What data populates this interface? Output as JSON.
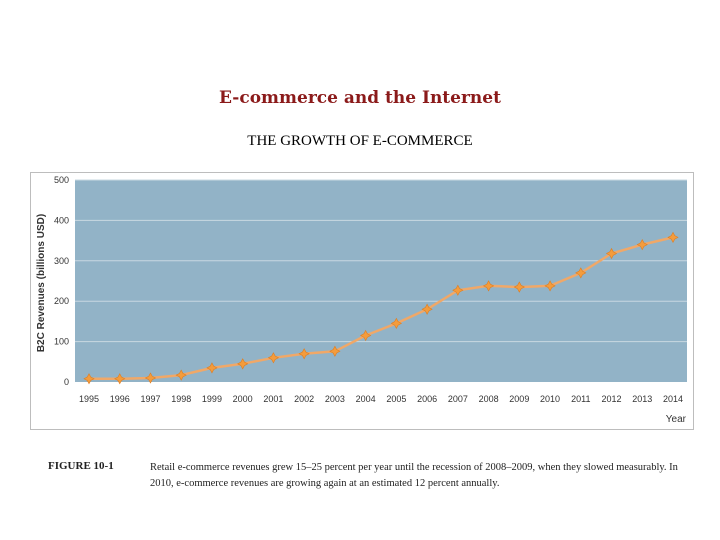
{
  "slide": {
    "title": "E-commerce and the Internet",
    "chart_heading": "THE GROWTH OF E-COMMERCE"
  },
  "caption": {
    "label": "FIGURE 10-1",
    "text": "Retail e-commerce revenues grew 15–25 percent per year until the recession of 2008–2009, when they slowed measurably. In 2010, e-commerce revenues are growing again at an estimated 12 percent annually."
  },
  "colors": {
    "plot_bg": "#92b3c7",
    "line": "#f0a868",
    "marker": "#f39c3d",
    "grid": "#c8d8e2"
  },
  "chart_data": {
    "type": "line",
    "x": [
      "1995",
      "1996",
      "1997",
      "1998",
      "1999",
      "2000",
      "2001",
      "2002",
      "2003",
      "2004",
      "2005",
      "2006",
      "2007",
      "2008",
      "2009",
      "2010",
      "2011",
      "2012",
      "2013",
      "2014"
    ],
    "series": [
      {
        "values": [
          8,
          8,
          10,
          17,
          35,
          45,
          60,
          70,
          76,
          115,
          145,
          180,
          227,
          238,
          235,
          238,
          270,
          318,
          340,
          358
        ]
      }
    ],
    "title": "",
    "xlabel": "Year",
    "ylabel": "B2C Revenues (billions USD)",
    "ylim": [
      0,
      500
    ],
    "yticks": [
      0,
      100,
      200,
      300,
      400,
      500
    ],
    "grid": true,
    "legend": "none"
  }
}
